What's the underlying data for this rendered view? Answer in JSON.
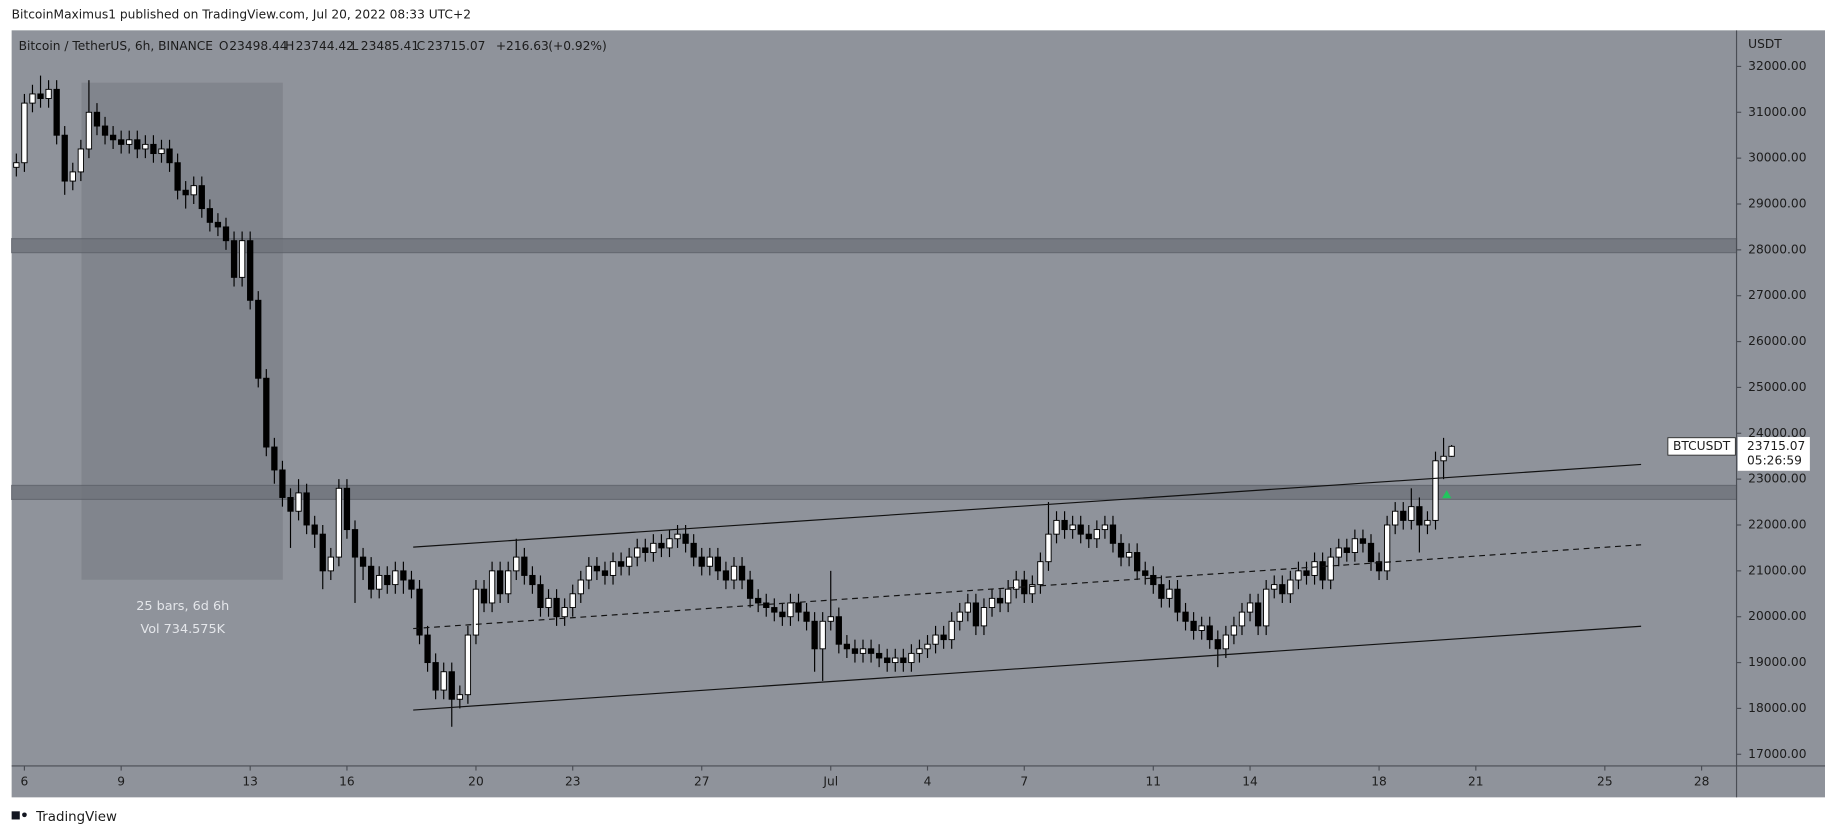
{
  "header": {
    "publisher": "BitcoinMaximus1 published on TradingView.com, Jul 20, 2022 08:33 UTC+2"
  },
  "chart_data": {
    "type": "candlestick",
    "title": "Bitcoin / TetherUS, 6h, BINANCE",
    "symbol": "BTCUSDT",
    "y_axis_label": "USDT",
    "legend_letters": [
      "O",
      "H",
      "L",
      "C"
    ],
    "change": {
      "value": 216.63,
      "label": "+216.63"
    },
    "change_pct": {
      "value": 0.92,
      "label": "(+0.92%)"
    },
    "countdown": "05:26:59",
    "measure_labels": [
      "25 bars, 6d 6h",
      "Vol 734.575K"
    ],
    "up_color": "#ffffff",
    "down_color": "#000000",
    "wick_color": "#000000",
    "background": "#8f939b",
    "x": [
      "2022-06-05T18:00",
      "2022-06-06T00:00",
      "2022-06-06T06:00",
      "2022-06-06T12:00",
      "2022-06-06T18:00",
      "2022-06-07T00:00",
      "2022-06-07T06:00",
      "2022-06-07T12:00",
      "2022-06-07T18:00",
      "2022-06-08T00:00",
      "2022-06-08T06:00",
      "2022-06-08T12:00",
      "2022-06-08T18:00",
      "2022-06-09T00:00",
      "2022-06-09T06:00",
      "2022-06-09T12:00",
      "2022-06-09T18:00",
      "2022-06-10T00:00",
      "2022-06-10T06:00",
      "2022-06-10T12:00",
      "2022-06-10T18:00",
      "2022-06-11T00:00",
      "2022-06-11T06:00",
      "2022-06-11T12:00",
      "2022-06-11T18:00",
      "2022-06-12T00:00",
      "2022-06-12T06:00",
      "2022-06-12T12:00",
      "2022-06-12T18:00",
      "2022-06-13T00:00",
      "2022-06-13T06:00",
      "2022-06-13T12:00",
      "2022-06-13T18:00",
      "2022-06-14T00:00",
      "2022-06-14T06:00",
      "2022-06-14T12:00",
      "2022-06-14T18:00",
      "2022-06-15T00:00",
      "2022-06-15T06:00",
      "2022-06-15T12:00",
      "2022-06-15T18:00",
      "2022-06-16T00:00",
      "2022-06-16T06:00",
      "2022-06-16T12:00",
      "2022-06-16T18:00",
      "2022-06-17T00:00",
      "2022-06-17T06:00",
      "2022-06-17T12:00",
      "2022-06-17T18:00",
      "2022-06-18T00:00",
      "2022-06-18T06:00",
      "2022-06-18T12:00",
      "2022-06-18T18:00",
      "2022-06-19T00:00",
      "2022-06-19T06:00",
      "2022-06-19T12:00",
      "2022-06-19T18:00",
      "2022-06-20T00:00",
      "2022-06-20T06:00",
      "2022-06-20T12:00",
      "2022-06-20T18:00",
      "2022-06-21T00:00",
      "2022-06-21T06:00",
      "2022-06-21T12:00",
      "2022-06-21T18:00",
      "2022-06-22T00:00",
      "2022-06-22T06:00",
      "2022-06-22T12:00",
      "2022-06-22T18:00",
      "2022-06-23T00:00",
      "2022-06-23T06:00",
      "2022-06-23T12:00",
      "2022-06-23T18:00",
      "2022-06-24T00:00",
      "2022-06-24T06:00",
      "2022-06-24T12:00",
      "2022-06-24T18:00",
      "2022-06-25T00:00",
      "2022-06-25T06:00",
      "2022-06-25T12:00",
      "2022-06-25T18:00",
      "2022-06-26T00:00",
      "2022-06-26T06:00",
      "2022-06-26T12:00",
      "2022-06-26T18:00",
      "2022-06-27T00:00",
      "2022-06-27T06:00",
      "2022-06-27T12:00",
      "2022-06-27T18:00",
      "2022-06-28T00:00",
      "2022-06-28T06:00",
      "2022-06-28T12:00",
      "2022-06-28T18:00",
      "2022-06-29T00:00",
      "2022-06-29T06:00",
      "2022-06-29T12:00",
      "2022-06-29T18:00",
      "2022-06-30T00:00",
      "2022-06-30T06:00",
      "2022-06-30T12:00",
      "2022-06-30T18:00",
      "2022-07-01T00:00",
      "2022-07-01T06:00",
      "2022-07-01T12:00",
      "2022-07-01T18:00",
      "2022-07-02T00:00",
      "2022-07-02T06:00",
      "2022-07-02T12:00",
      "2022-07-02T18:00",
      "2022-07-03T00:00",
      "2022-07-03T06:00",
      "2022-07-03T12:00",
      "2022-07-03T18:00",
      "2022-07-04T00:00",
      "2022-07-04T06:00",
      "2022-07-04T12:00",
      "2022-07-04T18:00",
      "2022-07-05T00:00",
      "2022-07-05T06:00",
      "2022-07-05T12:00",
      "2022-07-05T18:00",
      "2022-07-06T00:00",
      "2022-07-06T06:00",
      "2022-07-06T12:00",
      "2022-07-06T18:00",
      "2022-07-07T00:00",
      "2022-07-07T06:00",
      "2022-07-07T12:00",
      "2022-07-07T18:00",
      "2022-07-08T00:00",
      "2022-07-08T06:00",
      "2022-07-08T12:00",
      "2022-07-08T18:00",
      "2022-07-09T00:00",
      "2022-07-09T06:00",
      "2022-07-09T12:00",
      "2022-07-09T18:00",
      "2022-07-10T00:00",
      "2022-07-10T06:00",
      "2022-07-10T12:00",
      "2022-07-10T18:00",
      "2022-07-11T00:00",
      "2022-07-11T06:00",
      "2022-07-11T12:00",
      "2022-07-11T18:00",
      "2022-07-12T00:00",
      "2022-07-12T06:00",
      "2022-07-12T12:00",
      "2022-07-12T18:00",
      "2022-07-13T00:00",
      "2022-07-13T06:00",
      "2022-07-13T12:00",
      "2022-07-13T18:00",
      "2022-07-14T00:00",
      "2022-07-14T06:00",
      "2022-07-14T12:00",
      "2022-07-14T18:00",
      "2022-07-15T00:00",
      "2022-07-15T06:00",
      "2022-07-15T12:00",
      "2022-07-15T18:00",
      "2022-07-16T00:00",
      "2022-07-16T06:00",
      "2022-07-16T12:00",
      "2022-07-16T18:00",
      "2022-07-17T00:00",
      "2022-07-17T06:00",
      "2022-07-17T12:00",
      "2022-07-17T18:00",
      "2022-07-18T00:00",
      "2022-07-18T06:00",
      "2022-07-18T12:00",
      "2022-07-18T18:00",
      "2022-07-19T00:00",
      "2022-07-19T06:00",
      "2022-07-19T12:00",
      "2022-07-19T18:00",
      "2022-07-20T00:00",
      "2022-07-20T06:00"
    ],
    "open": [
      29800,
      29900,
      31200,
      31400,
      31300,
      31500,
      30500,
      29500,
      29700,
      30200,
      31000,
      30700,
      30500,
      30400,
      30300,
      30400,
      30200,
      30300,
      30100,
      30200,
      29900,
      29300,
      29200,
      29400,
      28900,
      28600,
      28500,
      28200,
      27400,
      28200,
      26900,
      25200,
      23700,
      23200,
      22600,
      22300,
      22700,
      22000,
      21800,
      21000,
      21300,
      22800,
      21900,
      21300,
      21100,
      20600,
      20900,
      20700,
      21000,
      20800,
      20600,
      19600,
      19000,
      18400,
      18800,
      18200,
      18300,
      19600,
      20600,
      20300,
      21000,
      20500,
      21000,
      21300,
      20900,
      20700,
      20200,
      20400,
      20000,
      20200,
      20500,
      20800,
      21100,
      21000,
      20900,
      21200,
      21100,
      21300,
      21500,
      21400,
      21600,
      21500,
      21700,
      21800,
      21600,
      21300,
      21100,
      21300,
      21000,
      20800,
      21100,
      20800,
      20400,
      20300,
      20200,
      20100,
      20000,
      20300,
      20100,
      19900,
      19300,
      19900,
      20000,
      19400,
      19300,
      19200,
      19300,
      19200,
      19100,
      19000,
      19100,
      19000,
      19200,
      19300,
      19400,
      19600,
      19500,
      19900,
      20100,
      20300,
      19800,
      20200,
      20400,
      20300,
      20600,
      20800,
      20500,
      20700,
      21200,
      21800,
      22100,
      21900,
      22000,
      21800,
      21700,
      21900,
      22000,
      21600,
      21300,
      21400,
      21000,
      20900,
      20700,
      20400,
      20600,
      20100,
      19900,
      19700,
      19800,
      19500,
      19300,
      19600,
      19800,
      20100,
      20300,
      19800,
      20600,
      20700,
      20500,
      20800,
      21000,
      20900,
      21200,
      20800,
      21300,
      21500,
      21400,
      21700,
      21600,
      21200,
      21000,
      22000,
      22300,
      22100,
      22400,
      22000,
      22100,
      23400,
      23498.44
    ],
    "high": [
      30100,
      31400,
      31600,
      31800,
      31700,
      31700,
      30700,
      29900,
      30400,
      31700,
      31200,
      30900,
      30700,
      30600,
      30600,
      30600,
      30500,
      30500,
      30400,
      30400,
      30100,
      29500,
      29600,
      29600,
      29100,
      28800,
      28700,
      28400,
      28400,
      28400,
      27100,
      25400,
      23900,
      23400,
      22800,
      23000,
      22900,
      22200,
      22000,
      21500,
      23000,
      23000,
      22100,
      21500,
      21300,
      21100,
      21100,
      21200,
      21200,
      21000,
      20800,
      19800,
      19200,
      19000,
      19000,
      18500,
      19800,
      20800,
      20800,
      21200,
      21200,
      21200,
      21700,
      21500,
      21100,
      20900,
      20600,
      20600,
      20400,
      20700,
      21000,
      21300,
      21300,
      21200,
      21400,
      21400,
      21500,
      21700,
      21700,
      21800,
      21800,
      21900,
      22000,
      22000,
      21800,
      21500,
      21500,
      21500,
      21200,
      21300,
      21300,
      21000,
      20600,
      20500,
      20400,
      20300,
      20500,
      20500,
      20300,
      20100,
      20100,
      21000,
      20200,
      19600,
      19500,
      19500,
      19500,
      19400,
      19300,
      19300,
      19300,
      19400,
      19500,
      19600,
      19800,
      19800,
      20100,
      20300,
      20500,
      20500,
      20400,
      20600,
      20600,
      20800,
      21000,
      21000,
      20900,
      21400,
      22500,
      22300,
      22300,
      22200,
      22200,
      22000,
      22100,
      22200,
      22200,
      21800,
      21600,
      21600,
      21200,
      21100,
      20900,
      20800,
      20800,
      20300,
      20100,
      20000,
      20000,
      19700,
      19800,
      20000,
      20300,
      20500,
      20500,
      20800,
      20900,
      20900,
      21000,
      21200,
      21200,
      21400,
      21400,
      21500,
      21700,
      21700,
      21900,
      21900,
      21800,
      21400,
      22200,
      22500,
      22500,
      22800,
      22600,
      22300,
      23600,
      23900,
      23744.42
    ],
    "low": [
      29600,
      29700,
      31000,
      31100,
      31100,
      30300,
      29200,
      29300,
      29500,
      30000,
      30500,
      30300,
      30200,
      30100,
      30100,
      30000,
      30000,
      29900,
      29900,
      29700,
      29100,
      28900,
      29000,
      28700,
      28400,
      28300,
      28000,
      27200,
      27200,
      26700,
      25000,
      23500,
      22900,
      22400,
      21500,
      22100,
      21800,
      21500,
      20600,
      20800,
      21100,
      21700,
      20300,
      20800,
      20400,
      20400,
      20500,
      20500,
      20500,
      20400,
      19400,
      18800,
      18200,
      18200,
      17600,
      18000,
      18100,
      19400,
      20100,
      20100,
      20300,
      20300,
      20800,
      20700,
      20500,
      20000,
      20000,
      19800,
      19800,
      20000,
      20300,
      20600,
      20800,
      20700,
      20700,
      20900,
      20900,
      21100,
      21200,
      21200,
      21300,
      21300,
      21500,
      21400,
      21100,
      20900,
      20900,
      20800,
      20600,
      20600,
      20600,
      20200,
      20100,
      20000,
      19900,
      19800,
      19800,
      19900,
      19700,
      18800,
      18600,
      19700,
      19200,
      19100,
      19000,
      19000,
      19000,
      18900,
      18800,
      18800,
      18800,
      18800,
      19000,
      19100,
      19200,
      19300,
      19300,
      19700,
      19900,
      19600,
      19600,
      20000,
      20100,
      20100,
      20400,
      20300,
      20300,
      20500,
      21000,
      21600,
      21700,
      21700,
      21600,
      21500,
      21500,
      21700,
      21400,
      21100,
      21100,
      20800,
      20700,
      20500,
      20200,
      20200,
      19900,
      19700,
      19500,
      19500,
      19300,
      18900,
      19100,
      19400,
      19600,
      19900,
      19600,
      19600,
      20400,
      20300,
      20300,
      20600,
      20700,
      20700,
      20600,
      20600,
      21100,
      21200,
      21200,
      21400,
      21000,
      20800,
      20800,
      21800,
      21900,
      21900,
      21400,
      21800,
      21900,
      23000,
      23485.41
    ],
    "close": [
      29900,
      31200,
      31400,
      31300,
      31500,
      30500,
      29500,
      29700,
      30200,
      31000,
      30700,
      30500,
      30400,
      30300,
      30400,
      30200,
      30300,
      30100,
      30200,
      29900,
      29300,
      29200,
      29400,
      28900,
      28600,
      28500,
      28200,
      27400,
      28200,
      26900,
      25200,
      23700,
      23200,
      22600,
      22300,
      22700,
      22000,
      21800,
      21000,
      21300,
      22800,
      21900,
      21300,
      21100,
      20600,
      20900,
      20700,
      21000,
      20800,
      20600,
      19600,
      19000,
      18400,
      18800,
      18200,
      18300,
      19600,
      20600,
      20300,
      21000,
      20500,
      21000,
      21300,
      20900,
      20700,
      20200,
      20400,
      20000,
      20200,
      20500,
      20800,
      21100,
      21000,
      20900,
      21200,
      21100,
      21300,
      21500,
      21400,
      21600,
      21500,
      21700,
      21800,
      21600,
      21300,
      21100,
      21300,
      21000,
      20800,
      21100,
      20800,
      20400,
      20300,
      20200,
      20100,
      20000,
      20300,
      20100,
      19900,
      19300,
      19900,
      20000,
      19400,
      19300,
      19200,
      19300,
      19200,
      19100,
      19000,
      19100,
      19000,
      19200,
      19300,
      19400,
      19600,
      19500,
      19900,
      20100,
      20300,
      19800,
      20200,
      20400,
      20300,
      20600,
      20800,
      20500,
      20700,
      21200,
      21800,
      22100,
      21900,
      22000,
      21800,
      21700,
      21900,
      22000,
      21600,
      21300,
      21400,
      21000,
      20900,
      20700,
      20400,
      20600,
      20100,
      19900,
      19700,
      19800,
      19500,
      19300,
      19600,
      19800,
      20100,
      20300,
      19800,
      20600,
      20700,
      20500,
      20800,
      21000,
      20900,
      21200,
      20800,
      21300,
      21500,
      21400,
      21700,
      21600,
      21200,
      21000,
      22000,
      22300,
      22100,
      22400,
      22000,
      22100,
      23400,
      23498.44,
      23715.07
    ],
    "xlim": [
      "2022-06-05T14:30",
      "2022-07-29T02:00"
    ],
    "ylim": [
      16746,
      32787
    ],
    "xticks": [
      {
        "value": "2022-06-06T00:00",
        "label": "6"
      },
      {
        "value": "2022-06-09T00:00",
        "label": "9"
      },
      {
        "value": "2022-06-13T00:00",
        "label": "13"
      },
      {
        "value": "2022-06-16T00:00",
        "label": "16"
      },
      {
        "value": "2022-06-20T00:00",
        "label": "20"
      },
      {
        "value": "2022-06-23T00:00",
        "label": "23"
      },
      {
        "value": "2022-06-27T00:00",
        "label": "27"
      },
      {
        "value": "2022-07-01T00:00",
        "label": "Jul"
      },
      {
        "value": "2022-07-04T00:00",
        "label": "4"
      },
      {
        "value": "2022-07-07T00:00",
        "label": "7"
      },
      {
        "value": "2022-07-11T00:00",
        "label": "11"
      },
      {
        "value": "2022-07-14T00:00",
        "label": "14"
      },
      {
        "value": "2022-07-18T00:00",
        "label": "18"
      },
      {
        "value": "2022-07-21T00:00",
        "label": "21"
      },
      {
        "value": "2022-07-25T00:00",
        "label": "25"
      },
      {
        "value": "2022-07-28T00:00",
        "label": "28"
      }
    ],
    "yticks": [
      {
        "value": 17000,
        "label": "17000.00"
      },
      {
        "value": 18000,
        "label": "18000.00"
      },
      {
        "value": 19000,
        "label": "19000.00"
      },
      {
        "value": 20000,
        "label": "20000.00"
      },
      {
        "value": 21000,
        "label": "21000.00"
      },
      {
        "value": 22000,
        "label": "22000.00"
      },
      {
        "value": 23000,
        "label": "23000.00"
      },
      {
        "value": 24000,
        "label": "24000.00"
      },
      {
        "value": 25000,
        "label": "25000.00"
      },
      {
        "value": 26000,
        "label": "26000.00"
      },
      {
        "value": 27000,
        "label": "27000.00"
      },
      {
        "value": 28000,
        "label": "28000.00"
      },
      {
        "value": 29000,
        "label": "29000.00"
      },
      {
        "value": 30000,
        "label": "30000.00"
      },
      {
        "value": 31000,
        "label": "31000.00"
      },
      {
        "value": 32000,
        "label": "32000.00"
      }
    ]
  },
  "footer": {
    "brand": "TradingView"
  }
}
